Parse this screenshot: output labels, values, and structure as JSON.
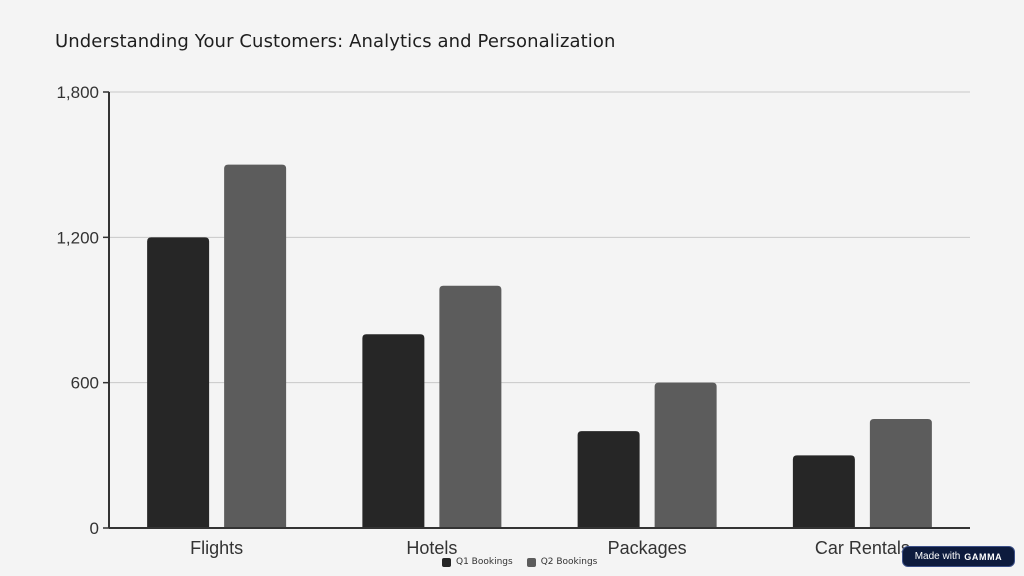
{
  "chart_data": {
    "type": "bar",
    "title": "Understanding Your Customers: Analytics and Personalization",
    "categories": [
      "Flights",
      "Hotels",
      "Packages",
      "Car Rentals"
    ],
    "series": [
      {
        "name": "Q1 Bookings",
        "values": [
          1200,
          800,
          400,
          300
        ],
        "color": "#262626"
      },
      {
        "name": "Q2 Bookings",
        "values": [
          1500,
          1000,
          600,
          450
        ],
        "color": "#5c5c5c"
      }
    ],
    "ylim": [
      0,
      1800
    ],
    "yticks": [
      "0",
      "600",
      "1,200",
      "1,800"
    ],
    "ytick_values": [
      0,
      600,
      1200,
      1800
    ],
    "grid": true,
    "legend_position": "bottom-center",
    "xlabel": "",
    "ylabel": ""
  },
  "badge": {
    "prefix": "Made with",
    "brand": "GAMMA"
  }
}
